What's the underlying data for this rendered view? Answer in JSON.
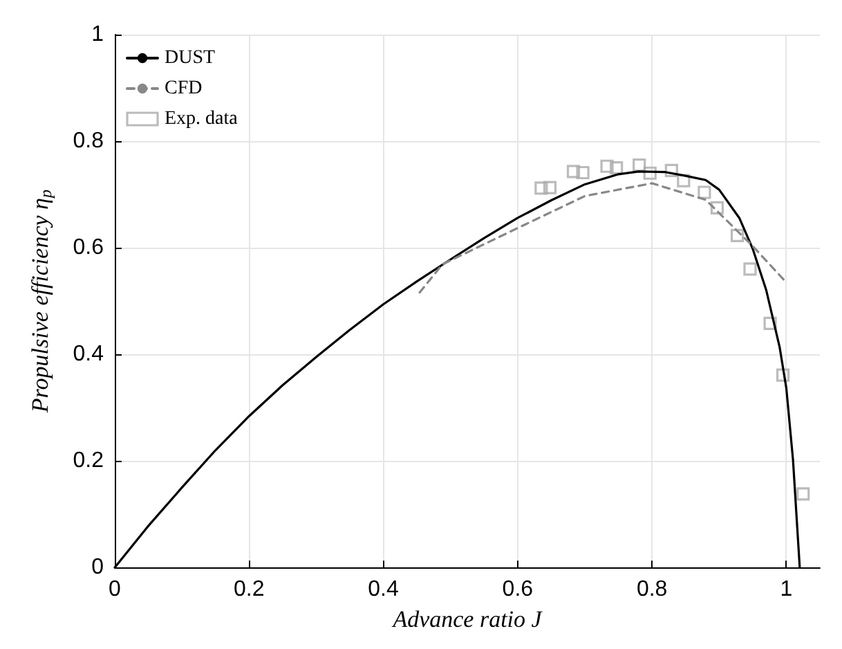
{
  "chart_data": {
    "type": "line",
    "xlabel": "Advance ratio J",
    "ylabel": "Propulsive efficiency η$_{p}$",
    "xlim": [
      0,
      1.05
    ],
    "ylim": [
      0,
      1
    ],
    "xticks": [
      0,
      0.2,
      0.4,
      0.6,
      0.8,
      1
    ],
    "yticks": [
      0,
      0.2,
      0.4,
      0.6,
      0.8,
      1
    ],
    "grid": true,
    "legend": "top left",
    "series": [
      {
        "name": "DUST",
        "color": "#000000",
        "line_style": "solid",
        "marker": "none",
        "x": [
          0,
          0.05,
          0.1,
          0.15,
          0.2,
          0.25,
          0.3,
          0.35,
          0.4,
          0.45,
          0.5,
          0.55,
          0.6,
          0.65,
          0.7,
          0.75,
          0.78,
          0.82,
          0.85,
          0.88,
          0.9,
          0.93,
          0.95,
          0.97,
          0.99,
          1.0,
          1.01,
          1.02
        ],
        "values": [
          0,
          0.078,
          0.15,
          0.22,
          0.284,
          0.342,
          0.395,
          0.446,
          0.494,
          0.537,
          0.578,
          0.618,
          0.656,
          0.689,
          0.719,
          0.738,
          0.743,
          0.742,
          0.735,
          0.727,
          0.709,
          0.656,
          0.598,
          0.521,
          0.414,
          0.337,
          0.202,
          0
        ]
      },
      {
        "name": "CFD",
        "color": "#888888",
        "line_style": "dashed",
        "marker": "none",
        "x": [
          0.454,
          0.488,
          0.6,
          0.7,
          0.8,
          0.88,
          0.95,
          1.0
        ],
        "values": [
          0.516,
          0.569,
          0.637,
          0.697,
          0.721,
          0.69,
          0.603,
          0.535
        ]
      },
      {
        "name": "Exp. data",
        "type": "scatter",
        "color": "#aaaaaa",
        "marker": "square",
        "x": [
          0.635,
          0.648,
          0.683,
          0.697,
          0.733,
          0.747,
          0.781,
          0.797,
          0.829,
          0.847,
          0.878,
          0.897,
          0.927,
          0.946,
          0.976,
          0.995,
          1.025
        ],
        "values": [
          0.712,
          0.713,
          0.743,
          0.741,
          0.753,
          0.75,
          0.755,
          0.74,
          0.745,
          0.726,
          0.704,
          0.675,
          0.623,
          0.56,
          0.458,
          0.361,
          0.138
        ]
      }
    ]
  }
}
